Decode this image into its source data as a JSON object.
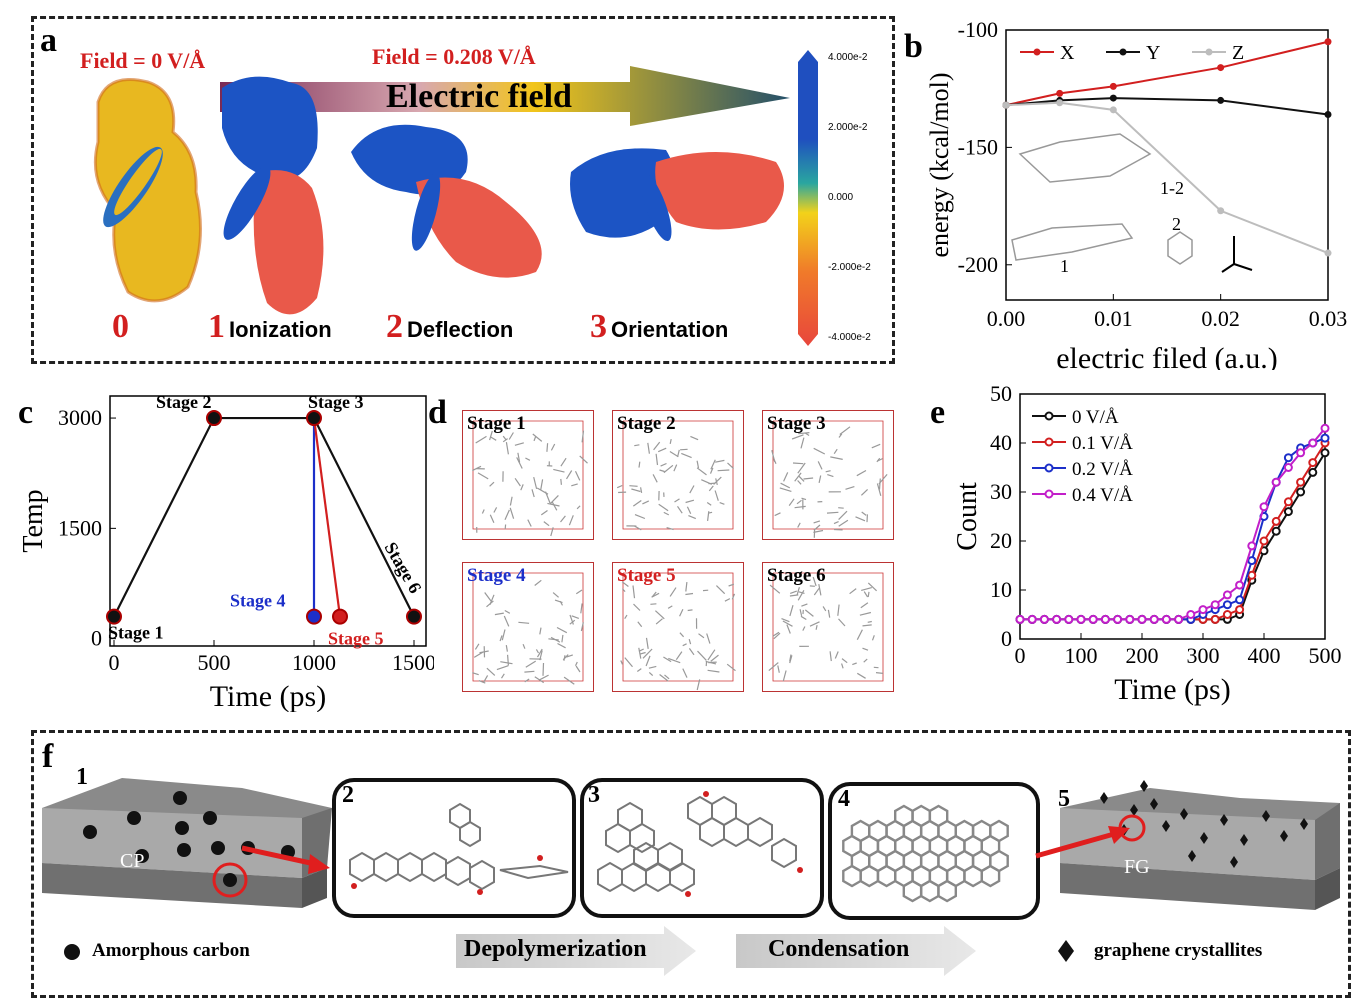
{
  "panel_a": {
    "letter": "a",
    "field0": "Field = 0 V/Å",
    "field1": "Field = 0.208 V/Å",
    "arrow_label": "Electric field",
    "steps": [
      {
        "num": "0",
        "label": ""
      },
      {
        "num": "1",
        "label": "Ionization"
      },
      {
        "num": "2",
        "label": "Deflection"
      },
      {
        "num": "3",
        "label": "Orientation"
      }
    ],
    "colorbar_ticks": [
      "4.000e-2",
      "2.000e-2",
      "0.000",
      "-2.000e-2",
      "-4.000e-2"
    ],
    "colorbar_colors": [
      "#1f4fbf",
      "#2aa6a0",
      "#f2d21a",
      "#f07a2a",
      "#e8463c"
    ]
  },
  "panel_b": {
    "letter": "b",
    "mol_labels": [
      "1-2",
      "1",
      "2"
    ]
  },
  "panel_c": {
    "letter": "c",
    "stage_labels": [
      "Stage 1",
      "Stage 2",
      "Stage 3",
      "Stage 4",
      "Stage 5",
      "Stage 6"
    ]
  },
  "panel_d": {
    "letter": "d",
    "boxes": [
      "Stage 1",
      "Stage 2",
      "Stage 3",
      "Stage 4",
      "Stage 5",
      "Stage 6"
    ]
  },
  "panel_e": {
    "letter": "e"
  },
  "panel_f": {
    "letter": "f",
    "step_numbers": [
      "1",
      "2",
      "3",
      "4",
      "5"
    ],
    "cp_label": "CP",
    "fg_label": "FG",
    "legend_left": "Amorphous carbon",
    "legend_right": "graphene crystallites",
    "arrow1": "Depolymerization",
    "arrow2": "Condensation"
  },
  "chart_data": [
    {
      "type": "line",
      "panel": "b",
      "xlabel": "electric filed (a.u.)",
      "ylabel": "energy (kcal/mol)",
      "xlim": [
        0,
        0.03
      ],
      "ylim": [
        -215,
        -100
      ],
      "xticks": [
        "0.00",
        "0.01",
        "0.02",
        "0.03"
      ],
      "yticks": [
        "-100",
        "-150",
        "-200"
      ],
      "x": [
        0.0,
        0.005,
        0.01,
        0.02,
        0.03
      ],
      "series": [
        {
          "name": "X",
          "color": "#d21f1f",
          "values": [
            -132,
            -127,
            -124,
            -116,
            -105
          ]
        },
        {
          "name": "Y",
          "color": "#111111",
          "values": [
            -132,
            -130,
            -129,
            -130,
            -136
          ]
        },
        {
          "name": "Z",
          "color": "#bdbdbd",
          "values": [
            -132,
            -131,
            -134,
            -177,
            -195
          ]
        }
      ],
      "legend": "top"
    },
    {
      "type": "line",
      "panel": "c",
      "xlabel": "Time (ps)",
      "ylabel": "Temp",
      "xlim": [
        -20,
        1560
      ],
      "ylim": [
        -100,
        3300
      ],
      "xticks": [
        "0",
        "500",
        "1000",
        "1500"
      ],
      "yticks": [
        "0",
        "1500",
        "3000"
      ],
      "series": [
        {
          "name": "",
          "color": "#111111",
          "x": [
            0,
            500,
            1000,
            1500
          ],
          "values": [
            300,
            3000,
            3000,
            300
          ]
        },
        {
          "name": "",
          "color": "#1c2fc9",
          "x": [
            1000,
            1000
          ],
          "values": [
            3000,
            300
          ]
        },
        {
          "name": "",
          "color": "#d21f1f",
          "x": [
            1000,
            1130
          ],
          "values": [
            3000,
            300
          ]
        }
      ],
      "markers": [
        {
          "x": 0,
          "y": 300,
          "stage": "Stage 1"
        },
        {
          "x": 500,
          "y": 3000,
          "stage": "Stage 2"
        },
        {
          "x": 1000,
          "y": 3000,
          "stage": "Stage 3"
        },
        {
          "x": 1000,
          "y": 300,
          "stage": "Stage 4"
        },
        {
          "x": 1130,
          "y": 300,
          "stage": "Stage 5"
        },
        {
          "x": 1500,
          "y": 300,
          "stage": "Stage 6"
        }
      ]
    },
    {
      "type": "line",
      "panel": "e",
      "xlabel": "Time (ps)",
      "ylabel": "Count",
      "xlim": [
        0,
        500
      ],
      "ylim": [
        0,
        50
      ],
      "xticks": [
        "0",
        "100",
        "200",
        "300",
        "400",
        "500"
      ],
      "yticks": [
        "0",
        "10",
        "20",
        "30",
        "40",
        "50"
      ],
      "x": [
        0,
        20,
        40,
        60,
        80,
        100,
        120,
        140,
        160,
        180,
        200,
        220,
        240,
        260,
        280,
        300,
        320,
        340,
        360,
        380,
        400,
        420,
        440,
        460,
        480,
        500
      ],
      "series": [
        {
          "name": "0    V/Å",
          "color": "#111111",
          "values": [
            4,
            4,
            4,
            4,
            4,
            4,
            4,
            4,
            4,
            4,
            4,
            4,
            4,
            4,
            4,
            4,
            4,
            4,
            5,
            12,
            18,
            22,
            26,
            30,
            34,
            38
          ]
        },
        {
          "name": "0.1 V/Å",
          "color": "#d21f1f",
          "values": [
            4,
            4,
            4,
            4,
            4,
            4,
            4,
            4,
            4,
            4,
            4,
            4,
            4,
            4,
            4,
            4,
            4,
            5,
            6,
            13,
            20,
            24,
            28,
            32,
            36,
            40
          ]
        },
        {
          "name": "0.2 V/Å",
          "color": "#1c2fc9",
          "values": [
            4,
            4,
            4,
            4,
            4,
            4,
            4,
            4,
            4,
            4,
            4,
            4,
            4,
            4,
            4,
            5,
            6,
            7,
            8,
            16,
            25,
            32,
            37,
            39,
            40,
            41
          ]
        },
        {
          "name": "0.4 V/Å",
          "color": "#c21fc9",
          "values": [
            4,
            4,
            4,
            4,
            4,
            4,
            4,
            4,
            4,
            4,
            4,
            4,
            4,
            4,
            5,
            6,
            7,
            9,
            11,
            19,
            27,
            32,
            35,
            38,
            40,
            43
          ]
        }
      ],
      "legend": "top-left"
    }
  ]
}
